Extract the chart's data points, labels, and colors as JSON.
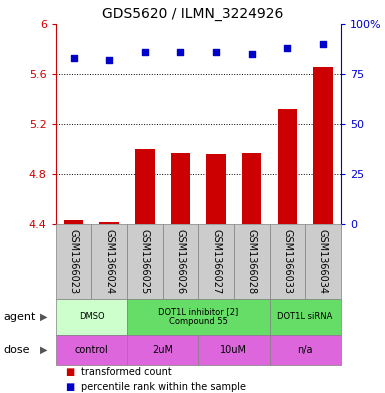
{
  "title": "GDS5620 / ILMN_3224926",
  "samples": [
    "GSM1366023",
    "GSM1366024",
    "GSM1366025",
    "GSM1366026",
    "GSM1366027",
    "GSM1366028",
    "GSM1366033",
    "GSM1366034"
  ],
  "bar_values": [
    4.43,
    4.42,
    5.0,
    4.97,
    4.96,
    4.97,
    5.32,
    5.65
  ],
  "dot_values": [
    83,
    82,
    86,
    86,
    86,
    85,
    88,
    90
  ],
  "ylim": [
    4.4,
    6.0
  ],
  "y2lim": [
    0,
    100
  ],
  "yticks": [
    4.4,
    4.8,
    5.2,
    5.6,
    6.0
  ],
  "ytick_labels": [
    "4.4",
    "4.8",
    "5.2",
    "5.6",
    "6"
  ],
  "y2ticks": [
    0,
    25,
    50,
    75,
    100
  ],
  "y2tick_labels": [
    "0",
    "25",
    "50",
    "75",
    "100%"
  ],
  "bar_color": "#cc0000",
  "dot_color": "#0000cc",
  "agent_groups": [
    {
      "label": "DMSO",
      "start": 0,
      "end": 2,
      "color": "#ccffcc"
    },
    {
      "label": "DOT1L inhibitor [2]\nCompound 55",
      "start": 2,
      "end": 6,
      "color": "#66dd66"
    },
    {
      "label": "DOT1L siRNA",
      "start": 6,
      "end": 8,
      "color": "#66dd66"
    }
  ],
  "dose_groups": [
    {
      "label": "control",
      "start": 0,
      "end": 2,
      "color": "#dd66dd"
    },
    {
      "label": "2uM",
      "start": 2,
      "end": 4,
      "color": "#dd66dd"
    },
    {
      "label": "10uM",
      "start": 4,
      "end": 6,
      "color": "#dd66dd"
    },
    {
      "label": "n/a",
      "start": 6,
      "end": 8,
      "color": "#dd66dd"
    }
  ],
  "legend_items": [
    {
      "label": "transformed count",
      "color": "#cc0000"
    },
    {
      "label": "percentile rank within the sample",
      "color": "#0000cc"
    }
  ],
  "bar_width": 0.55,
  "sample_bg": "#cccccc",
  "title_fontsize": 10,
  "tick_fontsize": 8,
  "label_fontsize": 7,
  "row_label_fontsize": 8,
  "legend_fontsize": 7
}
